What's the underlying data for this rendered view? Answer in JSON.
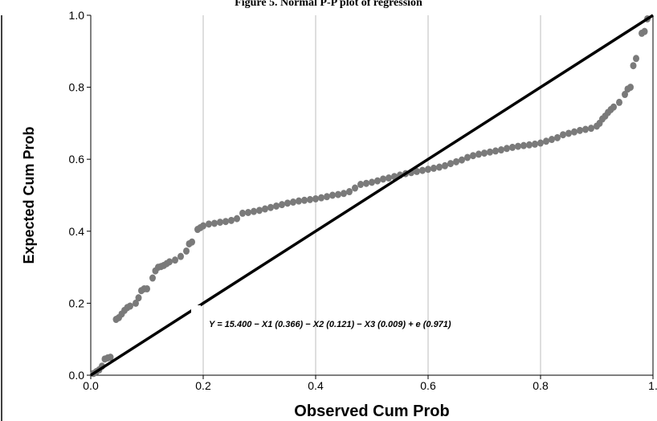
{
  "figure": {
    "title": "Figure 5. Normal P-P plot of regression"
  },
  "chart_data": {
    "type": "scatter",
    "title": "Figure 5. Normal P-P plot of regression",
    "xlabel": "Observed Cum Prob",
    "ylabel": "Expected Cum Prob",
    "xlim": [
      0,
      1
    ],
    "ylim": [
      0,
      1
    ],
    "x_ticks": [
      "0.0",
      "0.2",
      "0.4",
      "0.6",
      "0.8",
      "1."
    ],
    "y_ticks": [
      "0.0",
      "0.2",
      "0.4",
      "0.6",
      "0.8",
      "1.0"
    ],
    "grid": "vertical",
    "annotation": "Y = 15.400 − X1 (0.366) − X2 (0.121) − X3 (0.009) + e (0.971)",
    "reference_line": {
      "x": [
        0,
        1
      ],
      "y": [
        0,
        1
      ]
    },
    "series": [
      {
        "points": [
          [
            0.005,
            0.005
          ],
          [
            0.01,
            0.01
          ],
          [
            0.015,
            0.015
          ],
          [
            0.02,
            0.025
          ],
          [
            0.025,
            0.045
          ],
          [
            0.03,
            0.048
          ],
          [
            0.035,
            0.05
          ],
          [
            0.045,
            0.155
          ],
          [
            0.05,
            0.16
          ],
          [
            0.055,
            0.17
          ],
          [
            0.06,
            0.18
          ],
          [
            0.065,
            0.188
          ],
          [
            0.07,
            0.192
          ],
          [
            0.08,
            0.2
          ],
          [
            0.085,
            0.215
          ],
          [
            0.09,
            0.235
          ],
          [
            0.095,
            0.24
          ],
          [
            0.1,
            0.24
          ],
          [
            0.11,
            0.27
          ],
          [
            0.115,
            0.29
          ],
          [
            0.12,
            0.3
          ],
          [
            0.125,
            0.302
          ],
          [
            0.13,
            0.305
          ],
          [
            0.135,
            0.31
          ],
          [
            0.14,
            0.315
          ],
          [
            0.15,
            0.32
          ],
          [
            0.16,
            0.33
          ],
          [
            0.17,
            0.345
          ],
          [
            0.175,
            0.365
          ],
          [
            0.18,
            0.37
          ],
          [
            0.19,
            0.405
          ],
          [
            0.195,
            0.41
          ],
          [
            0.2,
            0.415
          ],
          [
            0.21,
            0.42
          ],
          [
            0.22,
            0.422
          ],
          [
            0.23,
            0.425
          ],
          [
            0.24,
            0.427
          ],
          [
            0.25,
            0.43
          ],
          [
            0.26,
            0.435
          ],
          [
            0.27,
            0.45
          ],
          [
            0.28,
            0.452
          ],
          [
            0.29,
            0.455
          ],
          [
            0.3,
            0.458
          ],
          [
            0.31,
            0.462
          ],
          [
            0.32,
            0.466
          ],
          [
            0.33,
            0.47
          ],
          [
            0.34,
            0.474
          ],
          [
            0.35,
            0.478
          ],
          [
            0.36,
            0.481
          ],
          [
            0.37,
            0.484
          ],
          [
            0.38,
            0.486
          ],
          [
            0.39,
            0.488
          ],
          [
            0.4,
            0.49
          ],
          [
            0.41,
            0.493
          ],
          [
            0.42,
            0.496
          ],
          [
            0.43,
            0.5
          ],
          [
            0.44,
            0.502
          ],
          [
            0.45,
            0.505
          ],
          [
            0.46,
            0.51
          ],
          [
            0.47,
            0.52
          ],
          [
            0.48,
            0.53
          ],
          [
            0.49,
            0.533
          ],
          [
            0.5,
            0.536
          ],
          [
            0.51,
            0.54
          ],
          [
            0.52,
            0.545
          ],
          [
            0.53,
            0.548
          ],
          [
            0.54,
            0.552
          ],
          [
            0.55,
            0.556
          ],
          [
            0.56,
            0.56
          ],
          [
            0.57,
            0.563
          ],
          [
            0.58,
            0.566
          ],
          [
            0.59,
            0.569
          ],
          [
            0.6,
            0.572
          ],
          [
            0.61,
            0.575
          ],
          [
            0.62,
            0.578
          ],
          [
            0.63,
            0.582
          ],
          [
            0.64,
            0.588
          ],
          [
            0.65,
            0.593
          ],
          [
            0.66,
            0.598
          ],
          [
            0.67,
            0.605
          ],
          [
            0.68,
            0.61
          ],
          [
            0.69,
            0.614
          ],
          [
            0.7,
            0.617
          ],
          [
            0.71,
            0.62
          ],
          [
            0.72,
            0.623
          ],
          [
            0.73,
            0.626
          ],
          [
            0.74,
            0.63
          ],
          [
            0.75,
            0.633
          ],
          [
            0.76,
            0.636
          ],
          [
            0.77,
            0.638
          ],
          [
            0.78,
            0.64
          ],
          [
            0.79,
            0.642
          ],
          [
            0.8,
            0.645
          ],
          [
            0.81,
            0.65
          ],
          [
            0.82,
            0.655
          ],
          [
            0.83,
            0.66
          ],
          [
            0.84,
            0.668
          ],
          [
            0.85,
            0.672
          ],
          [
            0.86,
            0.676
          ],
          [
            0.87,
            0.68
          ],
          [
            0.88,
            0.683
          ],
          [
            0.89,
            0.686
          ],
          [
            0.9,
            0.692
          ],
          [
            0.905,
            0.7
          ],
          [
            0.91,
            0.712
          ],
          [
            0.915,
            0.72
          ],
          [
            0.92,
            0.73
          ],
          [
            0.925,
            0.738
          ],
          [
            0.93,
            0.745
          ],
          [
            0.94,
            0.758
          ],
          [
            0.95,
            0.78
          ],
          [
            0.955,
            0.795
          ],
          [
            0.96,
            0.8
          ],
          [
            0.965,
            0.86
          ],
          [
            0.97,
            0.88
          ],
          [
            0.98,
            0.95
          ],
          [
            0.985,
            0.955
          ],
          [
            0.99,
            0.99
          ]
        ]
      }
    ]
  }
}
